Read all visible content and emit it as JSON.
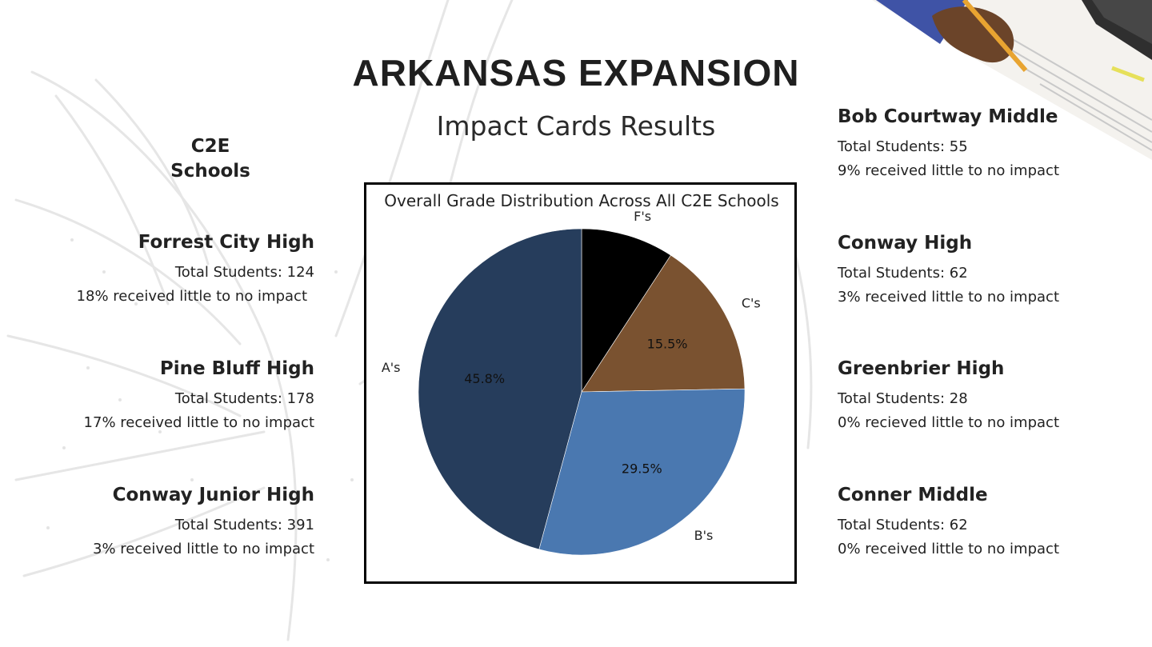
{
  "slide": {
    "title": "ARKANSAS EXPANSION",
    "subtitle": "Impact Cards Results",
    "left_heading_line1": "C2E",
    "left_heading_line2": "Schools"
  },
  "schools_left": [
    {
      "name": "Forrest City High",
      "students": "Total Students: 124",
      "impact": "18% received little to no impact"
    },
    {
      "name": "Pine Bluff High",
      "students": "Total Students: 178",
      "impact": "17% received little to no impact"
    },
    {
      "name": "Conway Junior High",
      "students": "Total Students: 391",
      "impact": "3% received little to no impact"
    }
  ],
  "schools_right": [
    {
      "name": "Bob Courtway Middle",
      "students": "Total Students: 55",
      "impact": "9% received little to no impact"
    },
    {
      "name": "Conway High",
      "students": "Total Students: 62",
      "impact": "3% received little to no impact"
    },
    {
      "name": "Greenbrier High",
      "students": "Total Students: 28",
      "impact": "0% recieved little to no impact"
    },
    {
      "name": "Conner Middle",
      "students": "Total Students: 62",
      "impact": "0% received little to no impact"
    }
  ],
  "chart_data": {
    "type": "pie",
    "title": "Overall Grade Distribution Across All C2E Schools",
    "start_angle_deg": 90,
    "direction": "clockwise",
    "slices": [
      {
        "label": "F's",
        "value": 9.2,
        "pct_label": "",
        "color": "#000000"
      },
      {
        "label": "C's",
        "value": 15.5,
        "pct_label": "15.5%",
        "color": "#7a5230"
      },
      {
        "label": "B's",
        "value": 29.5,
        "pct_label": "29.5%",
        "color": "#4a78b0"
      },
      {
        "label": "A's",
        "value": 45.8,
        "pct_label": "45.8%",
        "color": "#263d5c"
      }
    ]
  },
  "colors": {
    "background_sketch": "#ececec",
    "text": "#222222"
  }
}
